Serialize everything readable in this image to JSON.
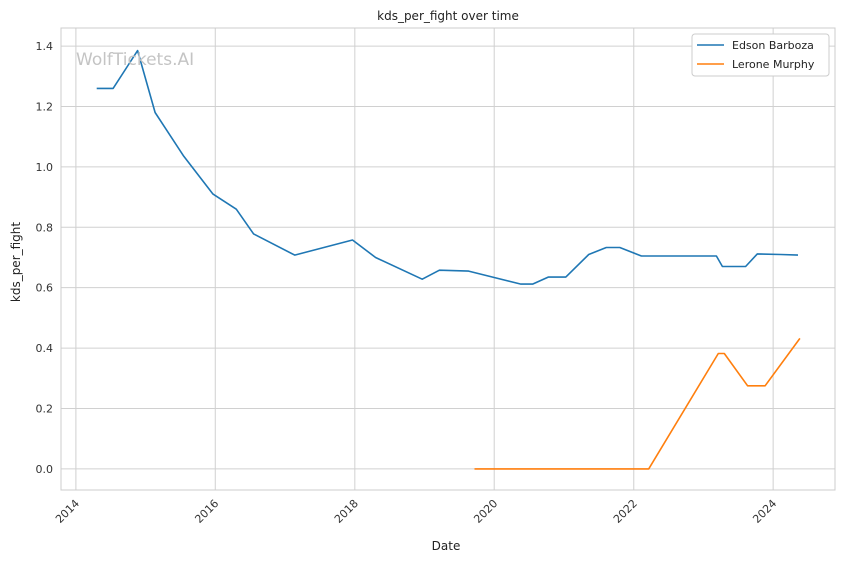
{
  "chart_data": {
    "type": "line",
    "title": "kds_per_fight over time",
    "xlabel": "Date",
    "ylabel": "kds_per_fight",
    "watermark": "WolfTickets.AI",
    "xlim": [
      "2013-10-15",
      "2024-11-20"
    ],
    "ylim": [
      -0.07,
      1.46
    ],
    "x_ticks": [
      {
        "date": "2014-01-01",
        "label": "2014"
      },
      {
        "date": "2016-01-01",
        "label": "2016"
      },
      {
        "date": "2018-01-01",
        "label": "2018"
      },
      {
        "date": "2020-01-01",
        "label": "2020"
      },
      {
        "date": "2022-01-01",
        "label": "2022"
      },
      {
        "date": "2024-01-01",
        "label": "2024"
      }
    ],
    "y_ticks": [
      {
        "value": 0.0,
        "label": "0.0"
      },
      {
        "value": 0.2,
        "label": "0.2"
      },
      {
        "value": 0.4,
        "label": "0.4"
      },
      {
        "value": 0.6,
        "label": "0.6"
      },
      {
        "value": 0.8,
        "label": "0.8"
      },
      {
        "value": 1.0,
        "label": "1.0"
      },
      {
        "value": 1.2,
        "label": "1.2"
      },
      {
        "value": 1.4,
        "label": "1.4"
      }
    ],
    "grid": true,
    "legend_position": "top-right",
    "series": [
      {
        "name": "Edson Barboza",
        "color": "#1f77b4",
        "points": [
          [
            "2014-04-20",
            1.26
          ],
          [
            "2014-07-15",
            1.26
          ],
          [
            "2014-11-20",
            1.385
          ],
          [
            "2015-02-20",
            1.18
          ],
          [
            "2015-07-20",
            1.035
          ],
          [
            "2015-12-20",
            0.91
          ],
          [
            "2016-04-20",
            0.86
          ],
          [
            "2016-07-20",
            0.778
          ],
          [
            "2017-02-20",
            0.708
          ],
          [
            "2017-12-20",
            0.758
          ],
          [
            "2018-04-20",
            0.7
          ],
          [
            "2018-12-20",
            0.628
          ],
          [
            "2019-03-20",
            0.658
          ],
          [
            "2019-08-20",
            0.655
          ],
          [
            "2020-05-20",
            0.612
          ],
          [
            "2020-07-20",
            0.612
          ],
          [
            "2020-10-10",
            0.635
          ],
          [
            "2021-01-10",
            0.635
          ],
          [
            "2021-05-10",
            0.71
          ],
          [
            "2021-08-10",
            0.733
          ],
          [
            "2021-10-20",
            0.733
          ],
          [
            "2022-02-10",
            0.705
          ],
          [
            "2022-06-10",
            0.705
          ],
          [
            "2023-01-20",
            0.705
          ],
          [
            "2023-03-10",
            0.705
          ],
          [
            "2023-04-10",
            0.67
          ],
          [
            "2023-08-10",
            0.67
          ],
          [
            "2023-10-10",
            0.712
          ],
          [
            "2024-02-10",
            0.71
          ],
          [
            "2024-05-10",
            0.708
          ]
        ]
      },
      {
        "name": "Lerone Murphy",
        "color": "#ff7f0e",
        "points": [
          [
            "2019-09-20",
            0.0
          ],
          [
            "2021-04-10",
            0.0
          ],
          [
            "2022-03-20",
            0.0
          ],
          [
            "2023-03-20",
            0.382
          ],
          [
            "2023-04-20",
            0.382
          ],
          [
            "2023-08-20",
            0.275
          ],
          [
            "2023-11-20",
            0.275
          ],
          [
            "2024-05-20",
            0.432
          ]
        ]
      }
    ]
  }
}
